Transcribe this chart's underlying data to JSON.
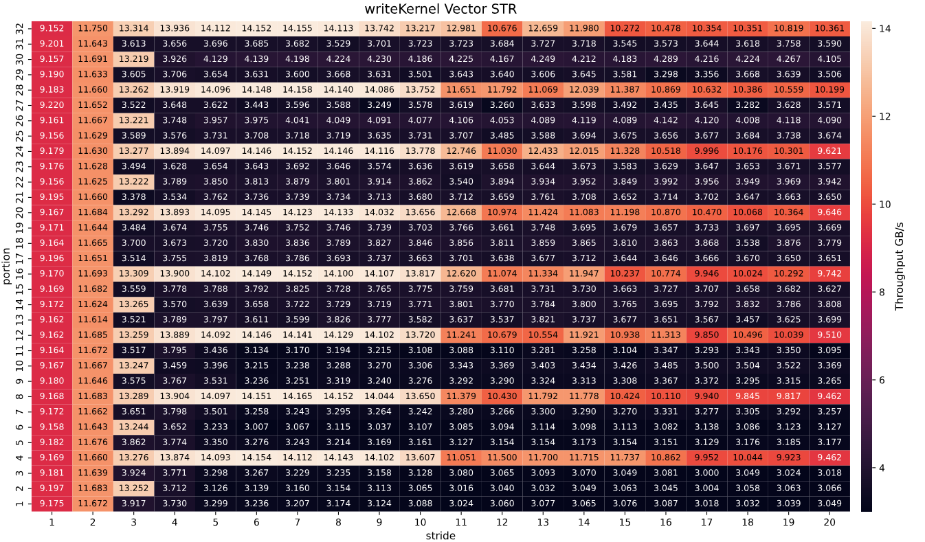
{
  "chart_data": {
    "type": "heatmap",
    "title": "writeKernel Vector STR",
    "xlabel": "stride",
    "ylabel": "portion",
    "clabel": "Throughput GB/s",
    "categories": [
      "1",
      "2",
      "3",
      "4",
      "5",
      "6",
      "7",
      "8",
      "9",
      "10",
      "11",
      "12",
      "13",
      "14",
      "15",
      "16",
      "17",
      "18",
      "19",
      "20"
    ],
    "y_categories": [
      "32",
      "31",
      "30",
      "29",
      "28",
      "27",
      "26",
      "25",
      "24",
      "23",
      "22",
      "21",
      "20",
      "19",
      "18",
      "17",
      "16",
      "15",
      "14",
      "13",
      "12",
      "11",
      "10",
      "9",
      "8",
      "7",
      "6",
      "5",
      "4",
      "3",
      "2",
      "1"
    ],
    "clim": [
      3.0,
      14.165
    ],
    "cticks": [
      4,
      6,
      8,
      10,
      12,
      14
    ],
    "cell_labels": [
      [
        "9.152",
        "11.750",
        "13.314",
        "13.936",
        "14.112",
        "14.152",
        "14.155",
        "14.113",
        "13.742",
        "13.217",
        "12.981",
        "10.676",
        "12.659",
        "11.980",
        "10.272",
        "10.478",
        "10.354",
        "10.351",
        "10.819",
        "10.361"
      ],
      [
        "9.201",
        "11.643",
        "3.613",
        "3.656",
        "3.696",
        "3.685",
        "3.682",
        "3.529",
        "3.701",
        "3.723",
        "3.723",
        "3.684",
        "3.727",
        "3.718",
        "3.545",
        "3.573",
        "3.644",
        "3.618",
        "3.758",
        "3.590"
      ],
      [
        "9.157",
        "11.691",
        "13.219",
        "3.926",
        "4.129",
        "4.139",
        "4.198",
        "4.224",
        "4.230",
        "4.186",
        "4.225",
        "4.167",
        "4.249",
        "4.212",
        "4.183",
        "4.289",
        "4.216",
        "4.224",
        "4.267",
        "4.105"
      ],
      [
        "9.190",
        "11.633",
        "3.605",
        "3.706",
        "3.654",
        "3.631",
        "3.600",
        "3.668",
        "3.631",
        "3.501",
        "3.643",
        "3.640",
        "3.606",
        "3.645",
        "3.581",
        "3.298",
        "3.356",
        "3.668",
        "3.639",
        "3.506"
      ],
      [
        "9.183",
        "11.660",
        "13.262",
        "13.919",
        "14.096",
        "14.148",
        "14.158",
        "14.140",
        "14.086",
        "13.752",
        "11.651",
        "11.792",
        "11.069",
        "12.039",
        "11.387",
        "10.869",
        "10.632",
        "10.386",
        "10.559",
        "10.199"
      ],
      [
        "9.220",
        "11.652",
        "3.522",
        "3.648",
        "3.622",
        "3.443",
        "3.596",
        "3.588",
        "3.249",
        "3.578",
        "3.619",
        "3.260",
        "3.633",
        "3.598",
        "3.492",
        "3.435",
        "3.645",
        "3.282",
        "3.628",
        "3.571"
      ],
      [
        "9.161",
        "11.667",
        "13.221",
        "3.748",
        "3.957",
        "3.975",
        "4.041",
        "4.049",
        "4.091",
        "4.077",
        "4.106",
        "4.053",
        "4.089",
        "4.119",
        "4.089",
        "4.142",
        "4.120",
        "4.008",
        "4.118",
        "4.090"
      ],
      [
        "9.156",
        "11.629",
        "3.589",
        "3.576",
        "3.731",
        "3.708",
        "3.718",
        "3.719",
        "3.635",
        "3.731",
        "3.707",
        "3.485",
        "3.588",
        "3.694",
        "3.675",
        "3.656",
        "3.677",
        "3.684",
        "3.738",
        "3.674"
      ],
      [
        "9.179",
        "11.630",
        "13.277",
        "13.894",
        "14.097",
        "14.146",
        "14.152",
        "14.146",
        "14.116",
        "13.778",
        "12.746",
        "11.030",
        "12.433",
        "12.015",
        "11.328",
        "10.518",
        "9.996",
        "10.176",
        "10.301",
        "9.621"
      ],
      [
        "9.176",
        "11.628",
        "3.494",
        "3.628",
        "3.654",
        "3.643",
        "3.692",
        "3.646",
        "3.574",
        "3.636",
        "3.619",
        "3.658",
        "3.644",
        "3.673",
        "3.583",
        "3.629",
        "3.647",
        "3.653",
        "3.671",
        "3.577"
      ],
      [
        "9.156",
        "11.625",
        "13.222",
        "3.789",
        "3.850",
        "3.813",
        "3.879",
        "3.801",
        "3.914",
        "3.862",
        "3.540",
        "3.894",
        "3.934",
        "3.952",
        "3.849",
        "3.992",
        "3.956",
        "3.949",
        "3.969",
        "3.942"
      ],
      [
        "9.195",
        "11.660",
        "3.378",
        "3.534",
        "3.762",
        "3.736",
        "3.739",
        "3.734",
        "3.713",
        "3.680",
        "3.712",
        "3.659",
        "3.761",
        "3.708",
        "3.652",
        "3.714",
        "3.702",
        "3.647",
        "3.663",
        "3.650"
      ],
      [
        "9.167",
        "11.684",
        "13.292",
        "13.893",
        "14.095",
        "14.145",
        "14.123",
        "14.133",
        "14.032",
        "13.656",
        "12.668",
        "10.974",
        "11.424",
        "11.083",
        "11.198",
        "10.870",
        "10.470",
        "10.068",
        "10.364",
        "9.646"
      ],
      [
        "9.171",
        "11.644",
        "3.484",
        "3.674",
        "3.755",
        "3.746",
        "3.752",
        "3.746",
        "3.739",
        "3.703",
        "3.766",
        "3.661",
        "3.748",
        "3.695",
        "3.679",
        "3.657",
        "3.733",
        "3.697",
        "3.695",
        "3.669"
      ],
      [
        "9.164",
        "11.665",
        "3.700",
        "3.673",
        "3.720",
        "3.830",
        "3.836",
        "3.789",
        "3.827",
        "3.846",
        "3.856",
        "3.811",
        "3.859",
        "3.865",
        "3.810",
        "3.863",
        "3.868",
        "3.538",
        "3.876",
        "3.779"
      ],
      [
        "9.196",
        "11.651",
        "3.514",
        "3.755",
        "3.819",
        "3.768",
        "3.786",
        "3.693",
        "3.737",
        "3.663",
        "3.701",
        "3.638",
        "3.677",
        "3.712",
        "3.644",
        "3.646",
        "3.666",
        "3.670",
        "3.650",
        "3.651"
      ],
      [
        "9.170",
        "11.693",
        "13.309",
        "13.900",
        "14.102",
        "14.149",
        "14.152",
        "14.100",
        "14.107",
        "13.817",
        "12.620",
        "11.074",
        "11.334",
        "11.947",
        "10.237",
        "10.774",
        "9.946",
        "10.024",
        "10.292",
        "9.742"
      ],
      [
        "9.169",
        "11.682",
        "3.559",
        "3.778",
        "3.788",
        "3.792",
        "3.825",
        "3.728",
        "3.765",
        "3.775",
        "3.759",
        "3.681",
        "3.731",
        "3.730",
        "3.663",
        "3.727",
        "3.707",
        "3.658",
        "3.682",
        "3.627"
      ],
      [
        "9.172",
        "11.624",
        "13.265",
        "3.570",
        "3.639",
        "3.658",
        "3.722",
        "3.729",
        "3.719",
        "3.771",
        "3.801",
        "3.770",
        "3.784",
        "3.800",
        "3.765",
        "3.695",
        "3.792",
        "3.832",
        "3.786",
        "3.808"
      ],
      [
        "9.162",
        "11.614",
        "3.521",
        "3.789",
        "3.797",
        "3.611",
        "3.599",
        "3.826",
        "3.777",
        "3.582",
        "3.637",
        "3.537",
        "3.821",
        "3.737",
        "3.677",
        "3.651",
        "3.567",
        "3.457",
        "3.625",
        "3.699"
      ],
      [
        "9.162",
        "11.685",
        "13.259",
        "13.889",
        "14.092",
        "14.146",
        "14.141",
        "14.129",
        "14.102",
        "13.720",
        "11.241",
        "10.679",
        "10.554",
        "11.921",
        "10.938",
        "11.313",
        "9.850",
        "10.496",
        "10.039",
        "9.510"
      ],
      [
        "9.164",
        "11.672",
        "3.517",
        "3.795",
        "3.436",
        "3.134",
        "3.170",
        "3.194",
        "3.215",
        "3.108",
        "3.088",
        "3.110",
        "3.281",
        "3.258",
        "3.104",
        "3.347",
        "3.293",
        "3.343",
        "3.350",
        "3.095"
      ],
      [
        "9.167",
        "11.667",
        "13.247",
        "3.459",
        "3.396",
        "3.215",
        "3.238",
        "3.288",
        "3.270",
        "3.306",
        "3.343",
        "3.369",
        "3.403",
        "3.434",
        "3.426",
        "3.485",
        "3.500",
        "3.504",
        "3.522",
        "3.369"
      ],
      [
        "9.180",
        "11.646",
        "3.575",
        "3.767",
        "3.531",
        "3.236",
        "3.251",
        "3.319",
        "3.240",
        "3.276",
        "3.292",
        "3.290",
        "3.324",
        "3.313",
        "3.308",
        "3.367",
        "3.372",
        "3.295",
        "3.315",
        "3.265"
      ],
      [
        "9.168",
        "11.683",
        "13.289",
        "13.904",
        "14.097",
        "14.151",
        "14.165",
        "14.152",
        "14.044",
        "13.650",
        "11.379",
        "10.430",
        "11.792",
        "11.778",
        "10.424",
        "10.110",
        "9.940",
        "9.845",
        "9.817",
        "9.462"
      ],
      [
        "9.172",
        "11.662",
        "3.651",
        "3.798",
        "3.501",
        "3.258",
        "3.243",
        "3.295",
        "3.264",
        "3.242",
        "3.280",
        "3.266",
        "3.300",
        "3.290",
        "3.270",
        "3.331",
        "3.277",
        "3.305",
        "3.292",
        "3.257"
      ],
      [
        "9.158",
        "11.643",
        "13.244",
        "3.652",
        "3.233",
        "3.007",
        "3.067",
        "3.115",
        "3.037",
        "3.107",
        "3.085",
        "3.094",
        "3.114",
        "3.098",
        "3.113",
        "3.082",
        "3.138",
        "3.086",
        "3.123",
        "3.127"
      ],
      [
        "9.182",
        "11.676",
        "3.862",
        "3.774",
        "3.350",
        "3.276",
        "3.243",
        "3.214",
        "3.169",
        "3.161",
        "3.127",
        "3.154",
        "3.154",
        "3.173",
        "3.154",
        "3.151",
        "3.129",
        "3.176",
        "3.185",
        "3.177"
      ],
      [
        "9.169",
        "11.660",
        "13.276",
        "13.874",
        "14.093",
        "14.154",
        "14.112",
        "14.143",
        "14.102",
        "13.607",
        "11.051",
        "11.500",
        "11.700",
        "11.715",
        "11.737",
        "10.862",
        "9.952",
        "10.044",
        "9.923",
        "9.462"
      ],
      [
        "9.181",
        "11.639",
        "3.924",
        "3.771",
        "3.298",
        "3.267",
        "3.229",
        "3.235",
        "3.158",
        "3.128",
        "3.080",
        "3.065",
        "3.093",
        "3.070",
        "3.049",
        "3.081",
        "3.000",
        "3.049",
        "3.024",
        "3.018"
      ],
      [
        "9.197",
        "11.683",
        "13.252",
        "3.712",
        "3.126",
        "3.139",
        "3.160",
        "3.154",
        "3.113",
        "3.065",
        "3.016",
        "3.040",
        "3.032",
        "3.049",
        "3.063",
        "3.045",
        "3.004",
        "3.058",
        "3.063",
        "3.066"
      ],
      [
        "9.175",
        "11.672",
        "3.917",
        "3.730",
        "3.299",
        "3.236",
        "3.207",
        "3.174",
        "3.124",
        "3.088",
        "3.024",
        "3.060",
        "3.077",
        "3.065",
        "3.076",
        "3.087",
        "3.018",
        "3.032",
        "3.039",
        "3.049"
      ]
    ],
    "cells": [
      [
        9.152,
        11.75,
        13.314,
        13.936,
        14.112,
        14.152,
        14.155,
        14.113,
        13.742,
        13.217,
        12.981,
        10.676,
        12.659,
        11.98,
        10.272,
        10.478,
        10.354,
        10.351,
        10.819,
        10.361
      ],
      [
        9.201,
        11.643,
        3.613,
        3.656,
        3.696,
        3.685,
        3.682,
        3.529,
        3.701,
        3.723,
        3.723,
        3.684,
        3.727,
        3.718,
        3.545,
        3.573,
        3.644,
        3.618,
        3.758,
        3.59
      ],
      [
        9.157,
        11.691,
        13.219,
        3.926,
        4.129,
        4.139,
        4.198,
        4.224,
        4.23,
        4.186,
        4.225,
        4.167,
        4.249,
        4.212,
        4.183,
        4.289,
        4.216,
        4.224,
        4.267,
        4.105
      ],
      [
        9.19,
        11.633,
        3.605,
        3.706,
        3.654,
        3.631,
        3.6,
        3.668,
        3.631,
        3.501,
        3.643,
        3.64,
        3.606,
        3.645,
        3.581,
        3.298,
        3.356,
        3.668,
        3.639,
        3.506
      ],
      [
        9.183,
        11.66,
        13.262,
        13.919,
        14.096,
        14.148,
        14.158,
        14.14,
        14.086,
        13.752,
        11.651,
        11.792,
        11.069,
        12.039,
        11.387,
        10.869,
        10.632,
        10.386,
        10.559,
        10.199
      ],
      [
        9.22,
        11.652,
        3.522,
        3.648,
        3.622,
        3.443,
        3.596,
        3.588,
        3.249,
        3.578,
        3.619,
        3.26,
        3.633,
        3.598,
        3.492,
        3.435,
        3.645,
        3.282,
        3.628,
        3.571
      ],
      [
        9.161,
        11.667,
        13.221,
        3.748,
        3.957,
        3.975,
        4.041,
        4.049,
        4.091,
        4.077,
        4.106,
        4.053,
        4.089,
        4.119,
        4.089,
        4.142,
        4.12,
        4.008,
        4.118,
        4.09
      ],
      [
        9.156,
        11.629,
        3.589,
        3.576,
        3.731,
        3.708,
        3.718,
        3.719,
        3.635,
        3.731,
        3.707,
        3.485,
        3.588,
        3.694,
        3.675,
        3.656,
        3.677,
        3.684,
        3.738,
        3.674
      ],
      [
        9.179,
        11.63,
        13.277,
        13.894,
        14.097,
        14.146,
        14.152,
        14.146,
        14.116,
        13.778,
        12.746,
        11.03,
        12.433,
        12.015,
        11.328,
        10.518,
        9.996,
        10.176,
        10.301,
        9.621
      ],
      [
        9.176,
        11.628,
        3.494,
        3.628,
        3.654,
        3.643,
        3.692,
        3.646,
        3.574,
        3.636,
        3.619,
        3.658,
        3.644,
        3.673,
        3.583,
        3.629,
        3.647,
        3.653,
        3.671,
        3.577
      ],
      [
        9.156,
        11.625,
        13.222,
        3.789,
        3.85,
        3.813,
        3.879,
        3.801,
        3.914,
        3.862,
        3.54,
        3.894,
        3.934,
        3.952,
        3.849,
        3.992,
        3.956,
        3.949,
        3.969,
        3.942
      ],
      [
        9.195,
        11.66,
        3.378,
        3.534,
        3.762,
        3.736,
        3.739,
        3.734,
        3.713,
        3.68,
        3.712,
        3.659,
        3.761,
        3.708,
        3.652,
        3.714,
        3.702,
        3.647,
        3.663,
        3.65
      ],
      [
        9.167,
        11.684,
        13.292,
        13.893,
        14.095,
        14.145,
        14.123,
        14.133,
        14.032,
        13.656,
        12.668,
        10.974,
        11.424,
        11.083,
        11.198,
        10.87,
        10.47,
        10.068,
        10.364,
        9.646
      ],
      [
        9.171,
        11.644,
        3.484,
        3.674,
        3.755,
        3.746,
        3.752,
        3.746,
        3.739,
        3.703,
        3.766,
        3.661,
        3.748,
        3.695,
        3.679,
        3.657,
        3.733,
        3.697,
        3.695,
        3.669
      ],
      [
        9.164,
        11.665,
        3.7,
        3.673,
        3.72,
        3.83,
        3.836,
        3.789,
        3.827,
        3.846,
        3.856,
        3.811,
        3.859,
        3.865,
        3.81,
        3.863,
        3.868,
        3.538,
        3.876,
        3.779
      ],
      [
        9.196,
        11.651,
        3.514,
        3.755,
        3.819,
        3.768,
        3.786,
        3.693,
        3.737,
        3.663,
        3.701,
        3.638,
        3.677,
        3.712,
        3.644,
        3.646,
        3.666,
        3.67,
        3.65,
        3.651
      ],
      [
        9.17,
        11.693,
        13.309,
        13.9,
        14.102,
        14.149,
        14.152,
        14.1,
        14.107,
        13.817,
        12.62,
        11.074,
        11.334,
        11.947,
        10.237,
        10.774,
        9.946,
        10.024,
        10.292,
        9.742
      ],
      [
        9.169,
        11.682,
        3.559,
        3.778,
        3.788,
        3.792,
        3.825,
        3.728,
        3.765,
        3.775,
        3.759,
        3.681,
        3.731,
        3.73,
        3.663,
        3.727,
        3.707,
        3.658,
        3.682,
        3.627
      ],
      [
        9.172,
        11.624,
        13.265,
        3.57,
        3.639,
        3.658,
        3.722,
        3.729,
        3.719,
        3.771,
        3.801,
        3.77,
        3.784,
        3.8,
        3.765,
        3.695,
        3.792,
        3.832,
        3.786,
        3.808
      ],
      [
        9.162,
        11.614,
        3.521,
        3.789,
        3.797,
        3.611,
        3.599,
        3.826,
        3.777,
        3.582,
        3.637,
        3.537,
        3.821,
        3.737,
        3.677,
        3.651,
        3.567,
        3.457,
        3.625,
        3.699
      ],
      [
        9.162,
        11.685,
        13.259,
        13.889,
        14.092,
        14.146,
        14.141,
        14.129,
        14.102,
        13.72,
        11.241,
        10.679,
        10.554,
        11.921,
        10.938,
        11.313,
        9.85,
        10.496,
        10.039,
        9.51
      ],
      [
        9.164,
        11.672,
        3.517,
        3.795,
        3.436,
        3.134,
        3.17,
        3.194,
        3.215,
        3.108,
        3.088,
        3.11,
        3.281,
        3.258,
        3.104,
        3.347,
        3.293,
        3.343,
        3.35,
        3.095
      ],
      [
        9.167,
        11.667,
        13.247,
        3.459,
        3.396,
        3.215,
        3.238,
        3.288,
        3.27,
        3.306,
        3.343,
        3.369,
        3.403,
        3.434,
        3.426,
        3.485,
        3.5,
        3.504,
        3.522,
        3.369
      ],
      [
        9.18,
        11.646,
        3.575,
        3.767,
        3.531,
        3.236,
        3.251,
        3.319,
        3.24,
        3.276,
        3.292,
        3.29,
        3.324,
        3.313,
        3.308,
        3.367,
        3.372,
        3.295,
        3.315,
        3.265
      ],
      [
        9.168,
        11.683,
        13.289,
        13.904,
        14.097,
        14.151,
        14.165,
        14.152,
        14.044,
        13.65,
        11.379,
        10.43,
        11.792,
        11.778,
        10.424,
        10.11,
        9.94,
        9.845,
        9.817,
        9.462
      ],
      [
        9.172,
        11.662,
        3.651,
        3.798,
        3.501,
        3.258,
        3.243,
        3.295,
        3.264,
        3.242,
        3.28,
        3.266,
        3.3,
        3.29,
        3.27,
        3.331,
        3.277,
        3.305,
        3.292,
        3.257
      ],
      [
        9.158,
        11.643,
        13.244,
        3.652,
        3.233,
        3.007,
        3.067,
        3.115,
        3.037,
        3.107,
        3.085,
        3.094,
        3.114,
        3.098,
        3.113,
        3.082,
        3.138,
        3.086,
        3.123,
        3.127
      ],
      [
        9.182,
        11.676,
        3.862,
        3.774,
        3.35,
        3.276,
        3.243,
        3.214,
        3.169,
        3.161,
        3.127,
        3.154,
        3.154,
        3.173,
        3.154,
        3.151,
        3.129,
        3.176,
        3.185,
        3.177
      ],
      [
        9.169,
        11.66,
        13.276,
        13.874,
        14.093,
        14.154,
        14.112,
        14.143,
        14.102,
        13.607,
        11.051,
        11.5,
        11.7,
        11.715,
        11.737,
        10.862,
        9.952,
        10.044,
        9.923,
        9.462
      ],
      [
        9.181,
        11.639,
        3.924,
        3.771,
        3.298,
        3.267,
        3.229,
        3.235,
        3.158,
        3.128,
        3.08,
        3.065,
        3.093,
        3.07,
        3.049,
        3.081,
        3.0,
        3.049,
        3.024,
        3.018
      ],
      [
        9.197,
        11.683,
        13.252,
        3.712,
        3.126,
        3.139,
        3.16,
        3.154,
        3.113,
        3.065,
        3.016,
        3.04,
        3.032,
        3.049,
        3.063,
        3.045,
        3.004,
        3.058,
        3.063,
        3.066
      ],
      [
        9.175,
        11.672,
        3.917,
        3.73,
        3.299,
        3.236,
        3.207,
        3.174,
        3.124,
        3.088,
        3.024,
        3.06,
        3.077,
        3.065,
        3.076,
        3.087,
        3.018,
        3.032,
        3.039,
        3.049
      ]
    ]
  }
}
